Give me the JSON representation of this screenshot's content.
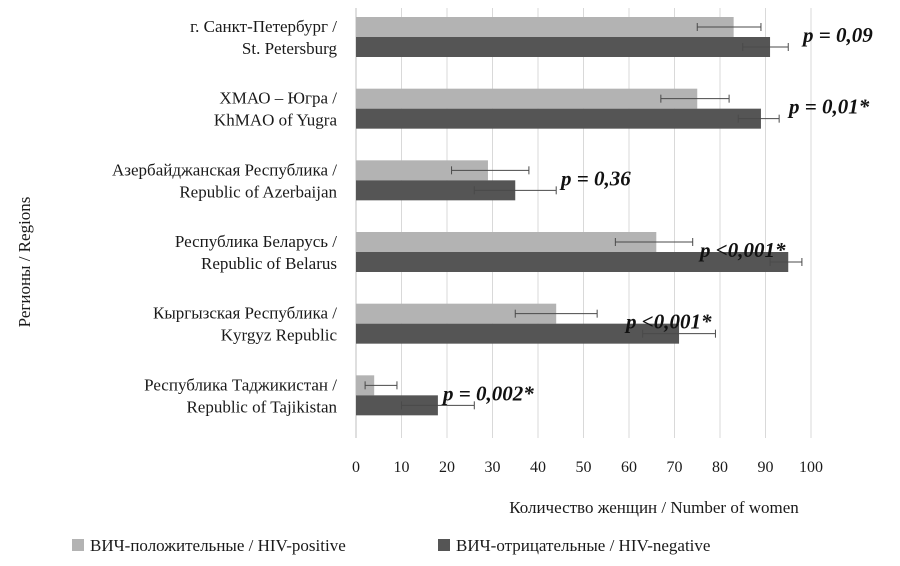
{
  "chart_data": {
    "type": "bar",
    "orientation": "horizontal",
    "categories": [
      [
        "г. Санкт-Петербург /",
        "St. Petersburg"
      ],
      [
        "ХМАО – Югра /",
        "KhMAO of Yugra"
      ],
      [
        "Азербайджанская Республика /",
        "Republic of Azerbaijan"
      ],
      [
        "Республика Беларусь /",
        "Republic of Belarus"
      ],
      [
        "Кыргызская Республика /",
        "Kyrgyz Republic"
      ],
      [
        "Республика Таджикистан /",
        "Republic of Tajikistan"
      ]
    ],
    "series": [
      {
        "name": "ВИЧ-положительные / HIV-positive",
        "color": "#b3b3b3",
        "values": [
          83,
          75,
          29,
          66,
          44,
          4
        ],
        "error_low": [
          75,
          67,
          21,
          57,
          35,
          2
        ],
        "error_high": [
          89,
          82,
          38,
          74,
          53,
          9
        ]
      },
      {
        "name": "ВИЧ-отрицательные / HIV-negative",
        "color": "#555555",
        "values": [
          91,
          89,
          35,
          95,
          71,
          18
        ],
        "error_low": [
          85,
          84,
          26,
          91,
          63,
          10
        ],
        "error_high": [
          95,
          93,
          44,
          98,
          79,
          26
        ]
      }
    ],
    "annotations": [
      "p = 0,09",
      "p = 0,01*",
      "p = 0,36",
      "p <0,001*",
      "p <0,001*",
      "p = 0,002*"
    ],
    "xlabel": "Количество женщин / Number of women",
    "ylabel": "Регионы / Regions",
    "xlim": [
      0,
      100
    ],
    "xticks": [
      0,
      10,
      20,
      30,
      40,
      50,
      60,
      70,
      80,
      90,
      100
    ],
    "grid": "vertical",
    "legend_position": "bottom"
  }
}
